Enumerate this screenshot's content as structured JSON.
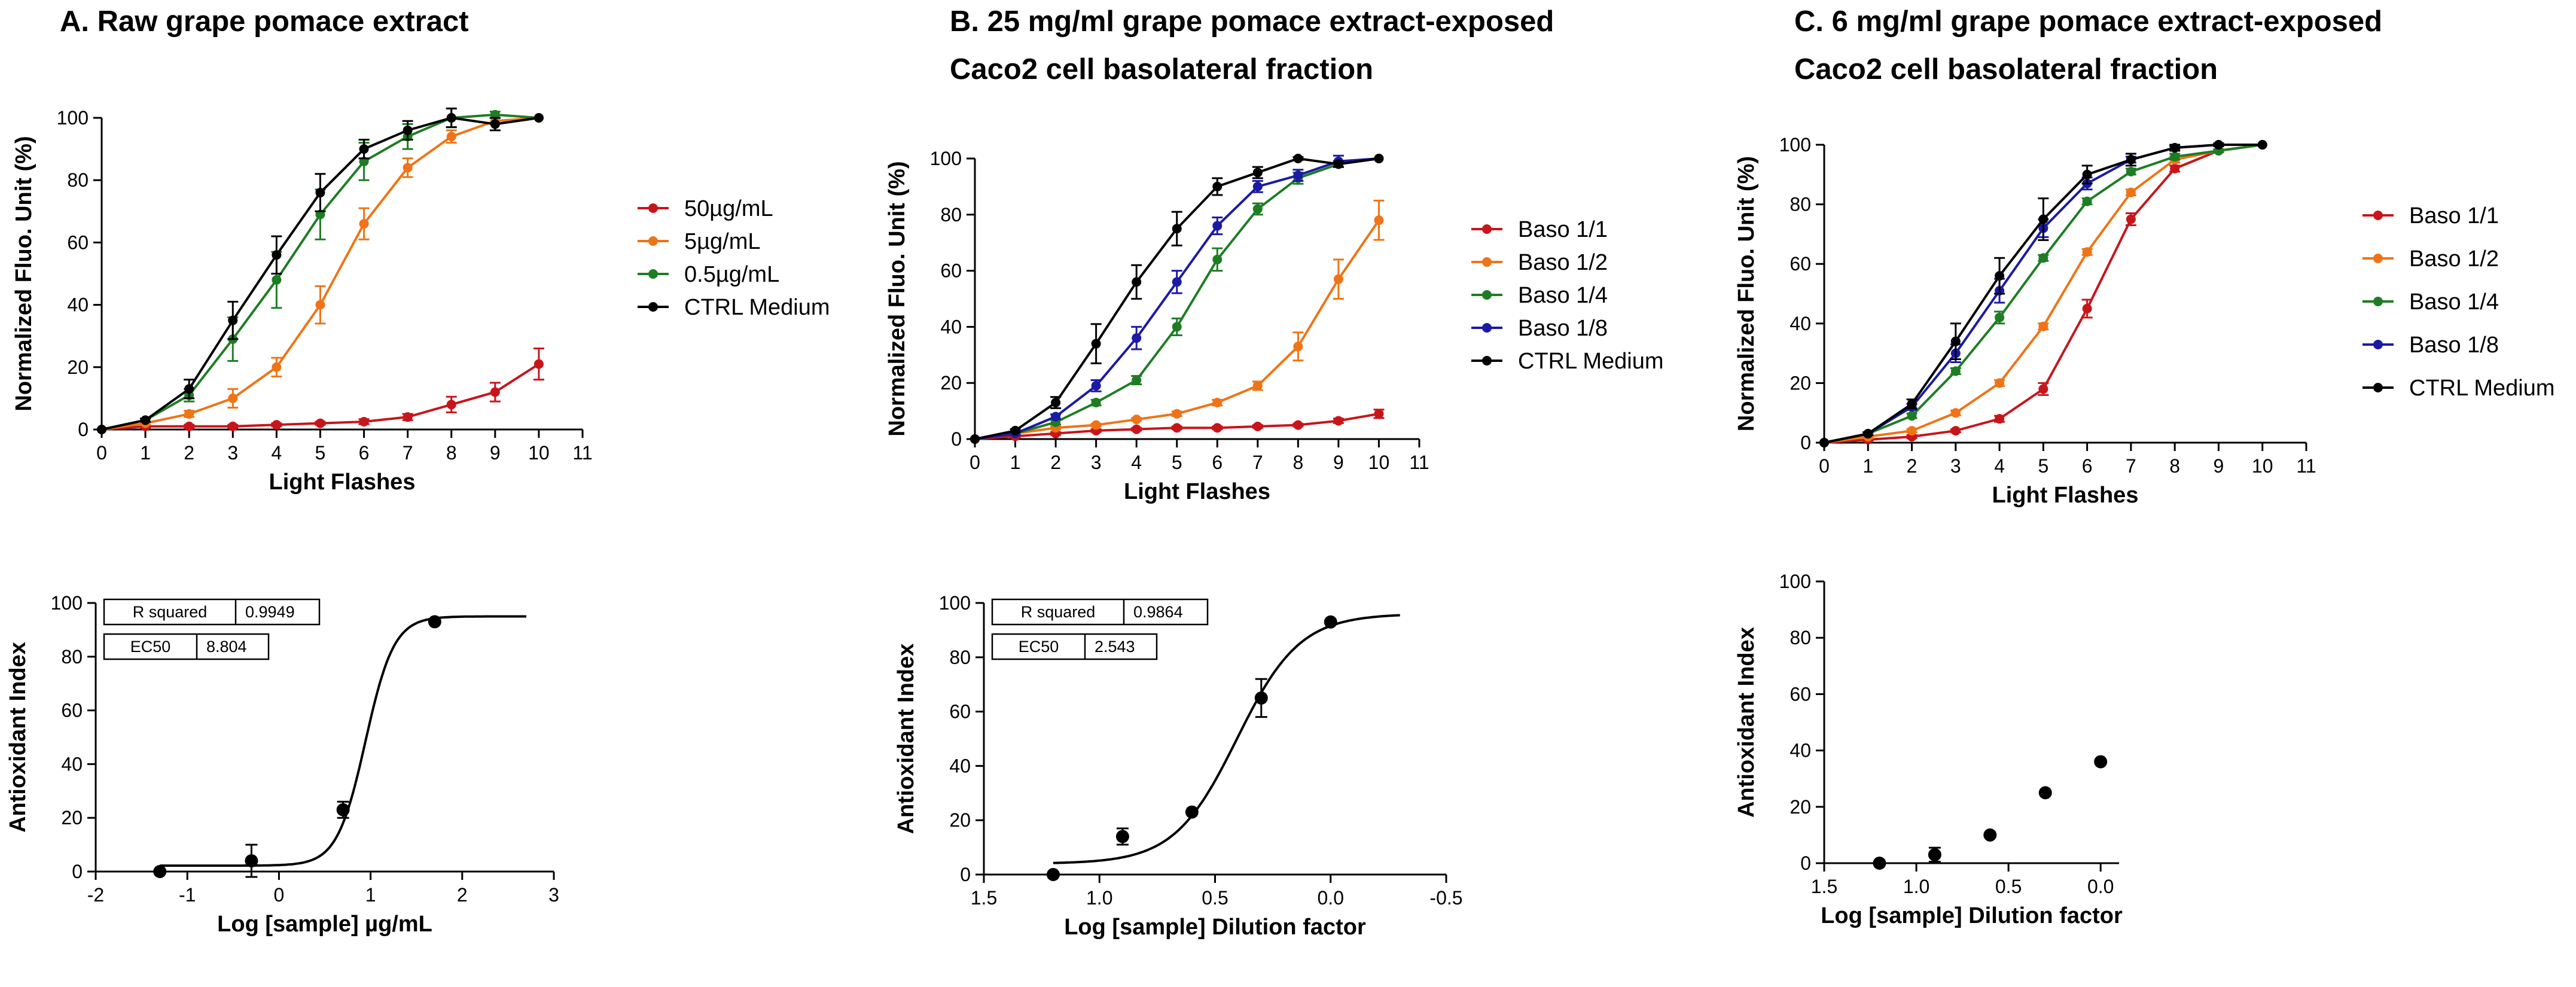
{
  "titles": {
    "a": "A. Raw grape pomace extract",
    "b_line1": "B. 25 mg/ml grape pomace extract-exposed",
    "b_line2": "Caco2 cell basolateral fraction",
    "c_line1": "C. 6 mg/ml grape pomace extract-exposed",
    "c_line2": "Caco2 cell basolateral fraction"
  },
  "colors": {
    "red": "#c8151b",
    "orange": "#ee7417",
    "green": "#1e7d24",
    "blue": "#1b1aa4",
    "black": "#000000"
  },
  "chart_data": [
    {
      "id": "A-top",
      "type": "line",
      "xlabel": "Light Flashes",
      "ylabel": "Normalized Fluo. Unit (%)",
      "xlim": [
        0,
        11
      ],
      "ylim": [
        0,
        100
      ],
      "xticks": [
        0,
        1,
        2,
        3,
        4,
        5,
        6,
        7,
        8,
        9,
        10,
        11
      ],
      "yticks": [
        0,
        20,
        40,
        60,
        80,
        100
      ],
      "x": [
        0,
        1,
        2,
        3,
        4,
        5,
        6,
        7,
        8,
        9,
        10
      ],
      "series": [
        {
          "name": "50µg/mL",
          "color": "red",
          "values": [
            0,
            1,
            1,
            1,
            1.5,
            2,
            2.5,
            4,
            8,
            12,
            21
          ],
          "err": [
            0,
            0.5,
            0.5,
            0.5,
            0.5,
            0.5,
            0.8,
            1,
            2.5,
            3,
            5
          ]
        },
        {
          "name": "5µg/mL",
          "color": "orange",
          "values": [
            0,
            2,
            5,
            10,
            20,
            40,
            66,
            84,
            94,
            99,
            100
          ],
          "err": [
            0,
            0.5,
            1,
            3,
            3,
            6,
            5,
            3,
            2,
            1,
            0
          ]
        },
        {
          "name": "0.5µg/mL",
          "color": "green",
          "values": [
            0,
            3,
            11,
            29,
            48,
            69,
            86,
            94,
            100,
            101,
            100
          ],
          "err": [
            0,
            0.5,
            2,
            7,
            9,
            8,
            6,
            4,
            3,
            1,
            0
          ]
        },
        {
          "name": "CTRL Medium",
          "color": "black",
          "values": [
            0,
            3,
            13,
            35,
            56,
            76,
            90,
            96,
            100,
            98,
            100
          ],
          "err": [
            0,
            0.5,
            3,
            6,
            6,
            6,
            3,
            3,
            3,
            2,
            0
          ]
        }
      ]
    },
    {
      "id": "B-top",
      "type": "line",
      "xlabel": "Light Flashes",
      "ylabel": "Normalized Fluo. Unit (%)",
      "xlim": [
        0,
        11
      ],
      "ylim": [
        0,
        100
      ],
      "xticks": [
        0,
        1,
        2,
        3,
        4,
        5,
        6,
        7,
        8,
        9,
        10,
        11
      ],
      "yticks": [
        0,
        20,
        40,
        60,
        80,
        100
      ],
      "x": [
        0,
        1,
        2,
        3,
        4,
        5,
        6,
        7,
        8,
        9,
        10
      ],
      "series": [
        {
          "name": "Baso 1/1",
          "color": "red",
          "values": [
            0,
            1,
            2,
            3,
            3.5,
            4,
            4,
            4.5,
            5,
            6.5,
            9
          ],
          "err": [
            0,
            0.5,
            0.5,
            0.5,
            0.5,
            0.5,
            0.5,
            0.5,
            0.5,
            0.8,
            1.5
          ]
        },
        {
          "name": "Baso 1/2",
          "color": "orange",
          "values": [
            0,
            2,
            4,
            5,
            7,
            9,
            13,
            19,
            33,
            57,
            78
          ],
          "err": [
            0,
            0.5,
            0.5,
            0.5,
            0.5,
            0.8,
            1,
            1.5,
            5,
            7,
            7
          ]
        },
        {
          "name": "Baso 1/4",
          "color": "green",
          "values": [
            0,
            2,
            6,
            13,
            21,
            40,
            64,
            82,
            93,
            98,
            100
          ],
          "err": [
            0,
            0.5,
            0.8,
            1,
            1.5,
            3,
            4,
            2,
            2,
            1,
            0
          ]
        },
        {
          "name": "Baso 1/8",
          "color": "blue",
          "values": [
            0,
            2,
            8,
            19,
            36,
            56,
            76,
            90,
            94,
            99,
            100
          ],
          "err": [
            0,
            0.5,
            0.8,
            2,
            4,
            4,
            3,
            2,
            2,
            2,
            0
          ]
        },
        {
          "name": "CTRL Medium",
          "color": "black",
          "values": [
            0,
            3,
            13,
            34,
            56,
            75,
            90,
            95,
            100,
            98,
            100
          ],
          "err": [
            0,
            0.5,
            2,
            7,
            6,
            6,
            3,
            2,
            0.5,
            1,
            0
          ]
        }
      ]
    },
    {
      "id": "C-top",
      "type": "line",
      "xlabel": "Light Flashes",
      "ylabel": "Normalized Fluo. Unit (%)",
      "xlim": [
        0,
        11
      ],
      "ylim": [
        0,
        100
      ],
      "xticks": [
        0,
        1,
        2,
        3,
        4,
        5,
        6,
        7,
        8,
        9,
        10,
        11
      ],
      "yticks": [
        0,
        20,
        40,
        60,
        80,
        100
      ],
      "x": [
        0,
        1,
        2,
        3,
        4,
        5,
        6,
        7,
        8,
        9,
        10
      ],
      "series": [
        {
          "name": "Baso 1/1",
          "color": "red",
          "values": [
            0,
            1,
            2,
            4,
            8,
            18,
            45,
            75,
            92,
            98,
            100
          ],
          "err": [
            0,
            0.5,
            0.5,
            0.5,
            1,
            2,
            3,
            2,
            1,
            0.5,
            0
          ]
        },
        {
          "name": "Baso 1/2",
          "color": "orange",
          "values": [
            0,
            2,
            4,
            10,
            20,
            39,
            64,
            84,
            95,
            98,
            100
          ],
          "err": [
            0,
            0.5,
            0.5,
            0.8,
            1,
            1,
            1,
            1,
            1,
            0.5,
            0
          ]
        },
        {
          "name": "Baso 1/4",
          "color": "green",
          "values": [
            0,
            3,
            9,
            24,
            42,
            62,
            81,
            91,
            96,
            98,
            100
          ],
          "err": [
            0,
            0.5,
            0.8,
            1,
            2,
            1,
            1,
            1,
            1,
            0.5,
            0
          ]
        },
        {
          "name": "Baso 1/8",
          "color": "blue",
          "values": [
            0,
            3,
            12,
            30,
            51,
            72,
            87,
            95,
            99,
            100,
            100
          ],
          "err": [
            0,
            0.5,
            1,
            3,
            4,
            3,
            2,
            1,
            0.5,
            0.5,
            0
          ]
        },
        {
          "name": "CTRL Medium",
          "color": "black",
          "values": [
            0,
            3,
            13,
            34,
            56,
            75,
            90,
            95,
            99,
            100,
            100
          ],
          "err": [
            0,
            0.5,
            1.5,
            6,
            6,
            7,
            3,
            2,
            1,
            0.5,
            0
          ]
        }
      ]
    },
    {
      "id": "A-bottom",
      "type": "scatter",
      "xlabel": "Log [sample] µg/mL",
      "ylabel": "Antioxidant Index",
      "xlim": [
        -2,
        3
      ],
      "ylim": [
        0,
        100
      ],
      "xticks": [
        -2,
        -1,
        0,
        1,
        2,
        3
      ],
      "yticks": [
        0,
        20,
        40,
        60,
        80,
        100
      ],
      "points": [
        {
          "x": -1.3,
          "y": 0,
          "err": 0
        },
        {
          "x": -0.3,
          "y": 4,
          "err": 6
        },
        {
          "x": 0.7,
          "y": 23,
          "err": 3
        },
        {
          "x": 1.7,
          "y": 93,
          "err": 0
        }
      ],
      "fit": {
        "bottom": 2.2,
        "top": 95,
        "logec50": 0.945,
        "hill": 2.8,
        "xrange": [
          -1.3,
          2.7
        ]
      },
      "stats": [
        {
          "label": "R squared",
          "value": "0.9949"
        },
        {
          "label": "EC50",
          "value": "8.804"
        }
      ]
    },
    {
      "id": "B-bottom",
      "type": "scatter",
      "x_reversed": true,
      "xlabel": "Log [sample] Dilution factor",
      "ylabel": "Antioxidant Index",
      "xlim": [
        1.5,
        -0.5
      ],
      "ylim": [
        0,
        100
      ],
      "xticks": [
        1.5,
        1.0,
        0.5,
        0.0,
        -0.5
      ],
      "xtick_labels": [
        "1.5",
        "1.0",
        "0.5",
        "0.0",
        "-0.5"
      ],
      "yticks": [
        0,
        20,
        40,
        60,
        80,
        100
      ],
      "points": [
        {
          "x": 1.2,
          "y": 0,
          "err": 0
        },
        {
          "x": 0.9,
          "y": 14,
          "err": 3
        },
        {
          "x": 0.6,
          "y": 23,
          "err": 0
        },
        {
          "x": 0.3,
          "y": 65,
          "err": 7
        },
        {
          "x": 0.0,
          "y": 93,
          "err": 0
        }
      ],
      "fit": {
        "bottom": 4,
        "top": 96,
        "logec50": 0.405,
        "hill": -3.2,
        "xrange": [
          1.2,
          -0.3
        ]
      },
      "stats": [
        {
          "label": "R squared",
          "value": "0.9864"
        },
        {
          "label": "EC50",
          "value": "2.543"
        }
      ]
    },
    {
      "id": "C-bottom",
      "type": "scatter",
      "x_reversed": true,
      "xlabel": "Log [sample] Dilution factor",
      "ylabel": "Antioxidant Index",
      "xlim": [
        1.5,
        -0.1
      ],
      "ylim": [
        0,
        100
      ],
      "xticks": [
        1.5,
        1.0,
        0.5,
        0.0
      ],
      "xtick_labels": [
        "1.5",
        "1.0",
        "0.5",
        "0.0"
      ],
      "yticks": [
        0,
        20,
        40,
        60,
        80,
        100
      ],
      "points": [
        {
          "x": 1.2,
          "y": 0,
          "err": 0
        },
        {
          "x": 0.9,
          "y": 3,
          "err": 2.5
        },
        {
          "x": 0.6,
          "y": 10,
          "err": 0
        },
        {
          "x": 0.3,
          "y": 25,
          "err": 0
        },
        {
          "x": 0.0,
          "y": 36,
          "err": 0
        }
      ]
    }
  ]
}
